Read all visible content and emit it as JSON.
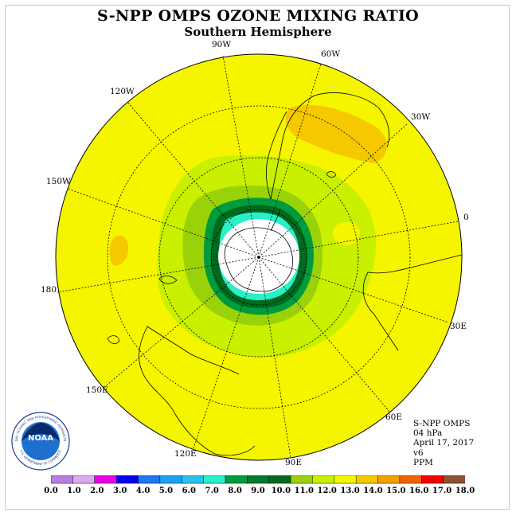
{
  "title": "S-NPP OMPS OZONE MIXING RATIO",
  "subtitle": "Southern Hemisphere",
  "longitude_labels": {
    "90W": "90W",
    "60W": "60W",
    "30W": "30W",
    "120W": "120W",
    "150W": "150W",
    "0": "0",
    "180": "180",
    "30E": "30E",
    "150E": "150E",
    "60E": "60E",
    "120E": "120E",
    "90E": "90E"
  },
  "info": {
    "instrument": "S-NPP OMPS",
    "level": "04 hPa",
    "date": "April 17, 2017",
    "version": "v6",
    "units": "PPM"
  },
  "logo": {
    "text": "NOAA",
    "ring_text": "NATIONAL OCEANIC AND ATMOSPHERIC ADMINISTRATION",
    "ring_text_bottom": "U.S. DEPARTMENT OF COMMERCE"
  },
  "colorbar": {
    "ticks": [
      "0.0",
      "1.0",
      "2.0",
      "3.0",
      "4.0",
      "5.0",
      "6.0",
      "7.0",
      "8.0",
      "9.0",
      "10.0",
      "11.0",
      "12.0",
      "13.0",
      "14.0",
      "15.0",
      "16.0",
      "17.0",
      "18.0"
    ],
    "colors": [
      "#b77fe0",
      "#dca8f0",
      "#e600e6",
      "#0000ee",
      "#1e78f0",
      "#1ea0f0",
      "#28c2f0",
      "#28f0c8",
      "#009b3c",
      "#007a2e",
      "#006a1e",
      "#9ad20a",
      "#c8f000",
      "#f5f500",
      "#f5c800",
      "#f0a000",
      "#f06400",
      "#f00000",
      "#8c5032"
    ]
  },
  "colors": {
    "yellow": "#f5f500",
    "orange": "#f5c800",
    "lime": "#c8f000",
    "green_light": "#9ad20a",
    "green_mid": "#009b3c",
    "green_dark": "#006a1e",
    "cyan": "#28f0c8"
  }
}
